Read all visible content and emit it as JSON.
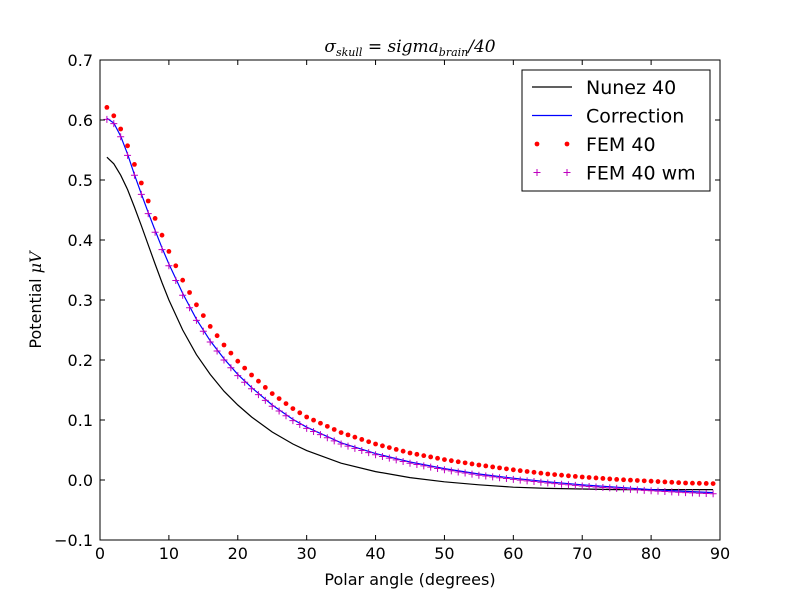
{
  "chart_data": {
    "type": "line",
    "title": "σ_skull = sigma_brain / 40",
    "title_parts": {
      "main": "σ",
      "sub1": "skull",
      "mid": " = sigma",
      "sub2": "brain",
      "tail": "/40"
    },
    "xlabel": "Polar angle (degrees)",
    "ylabel_prefix": "Potential ",
    "ylabel_unit": "μV",
    "xlim": [
      0,
      90
    ],
    "ylim": [
      -0.1,
      0.7
    ],
    "xticks": [
      0,
      10,
      20,
      30,
      40,
      50,
      60,
      70,
      80,
      90
    ],
    "yticks": [
      -0.1,
      0.0,
      0.1,
      0.2,
      0.3,
      0.4,
      0.5,
      0.6,
      0.7
    ],
    "ytick_labels": [
      "−0.1",
      "0.0",
      "0.1",
      "0.2",
      "0.3",
      "0.4",
      "0.5",
      "0.6",
      "0.7"
    ],
    "grid": false,
    "legend_position": "top-right",
    "x": [
      1,
      2,
      3,
      4,
      5,
      6,
      7,
      8,
      9,
      10,
      12,
      14,
      16,
      18,
      20,
      22,
      25,
      28,
      30,
      35,
      40,
      45,
      50,
      55,
      60,
      65,
      70,
      75,
      80,
      85,
      89
    ],
    "series": [
      {
        "name": "Nunez 40",
        "color": "#000000",
        "style": "line",
        "values": [
          0.538,
          0.527,
          0.508,
          0.484,
          0.455,
          0.424,
          0.392,
          0.36,
          0.329,
          0.3,
          0.25,
          0.209,
          0.176,
          0.148,
          0.125,
          0.105,
          0.08,
          0.06,
          0.049,
          0.028,
          0.014,
          0.004,
          -0.003,
          -0.008,
          -0.012,
          -0.014,
          -0.015,
          -0.016,
          -0.016,
          -0.016,
          -0.016
        ]
      },
      {
        "name": "Correction",
        "color": "#0000ff",
        "style": "line",
        "values": [
          0.603,
          0.595,
          0.573,
          0.543,
          0.509,
          0.477,
          0.446,
          0.416,
          0.387,
          0.36,
          0.311,
          0.268,
          0.232,
          0.202,
          0.176,
          0.154,
          0.125,
          0.101,
          0.088,
          0.062,
          0.044,
          0.03,
          0.019,
          0.01,
          0.003,
          -0.003,
          -0.008,
          -0.012,
          -0.016,
          -0.019,
          -0.021
        ]
      },
      {
        "name": "FEM 40",
        "color": "#ff0000",
        "style": "dot",
        "values": [
          0.621,
          0.607,
          0.585,
          0.557,
          0.526,
          0.495,
          0.465,
          0.436,
          0.408,
          0.381,
          0.333,
          0.292,
          0.256,
          0.225,
          0.198,
          0.175,
          0.144,
          0.119,
          0.105,
          0.079,
          0.06,
          0.045,
          0.034,
          0.025,
          0.017,
          0.01,
          0.005,
          0.001,
          -0.002,
          -0.005,
          -0.006
        ]
      },
      {
        "name": "FEM 40 wm",
        "color": "#bf00bf",
        "style": "plus",
        "values": [
          0.601,
          0.594,
          0.572,
          0.541,
          0.508,
          0.476,
          0.444,
          0.413,
          0.384,
          0.357,
          0.308,
          0.266,
          0.23,
          0.2,
          0.174,
          0.152,
          0.123,
          0.099,
          0.086,
          0.06,
          0.042,
          0.028,
          0.017,
          0.008,
          0.001,
          -0.005,
          -0.01,
          -0.014,
          -0.018,
          -0.021,
          -0.023
        ]
      }
    ]
  }
}
